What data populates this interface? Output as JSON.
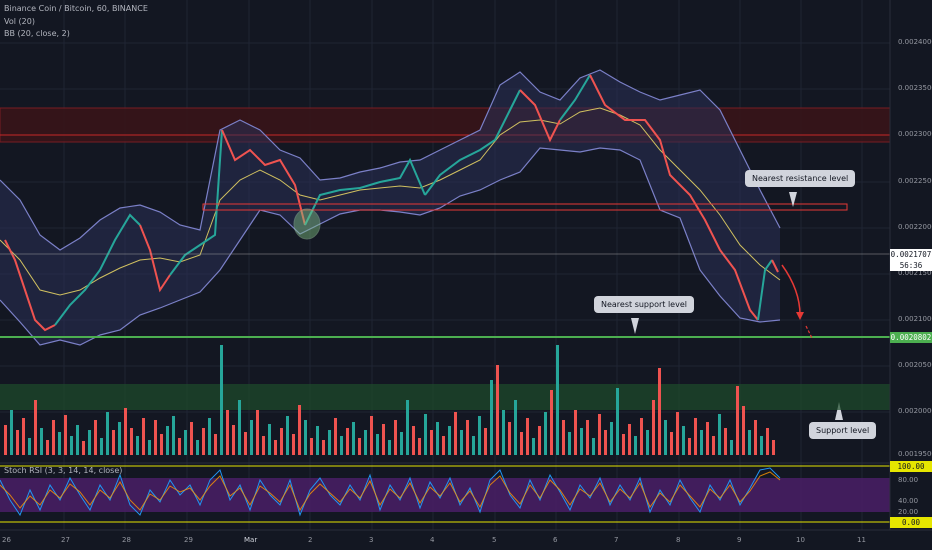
{
  "header": {
    "symbol": "Binance Coin / Bitcoin, 60, BINANCE",
    "vol": "Vol (20)",
    "bb": "BB (20, close, 2)",
    "stoch": "Stoch RSI (3, 3, 14, 14, close)"
  },
  "price_axis": {
    "ticks": [
      "0.0024000",
      "0.0023500",
      "0.0023000",
      "0.0022500",
      "0.0022000",
      "0.0021500",
      "0.0021000",
      "0.0020500",
      "0.0020000",
      "0.0019500"
    ],
    "current_price": "0.0021707",
    "countdown": "56:36",
    "support_price": "0.0020802"
  },
  "stoch_axis": {
    "ticks": [
      "100.00",
      "80.00",
      "40.00",
      "20.00",
      "0.00"
    ],
    "top_tag": "100.00",
    "bottom_tag": "0.00"
  },
  "time_axis": {
    "labels": [
      "26",
      "27",
      "28",
      "29",
      "Mar",
      "2",
      "3",
      "4",
      "5",
      "6",
      "7",
      "8",
      "9",
      "10",
      "11"
    ]
  },
  "annotations": {
    "resistance": "Nearest resistance level",
    "support": "Nearest support level",
    "support_zone": "Support level"
  },
  "colors": {
    "background": "#131722",
    "up": "#26a69a",
    "down": "#ef5350",
    "bb": "#7b80c8",
    "support": "#4caf50",
    "resistance": "#e53935",
    "stoch_band": "#6a2a8a"
  }
}
